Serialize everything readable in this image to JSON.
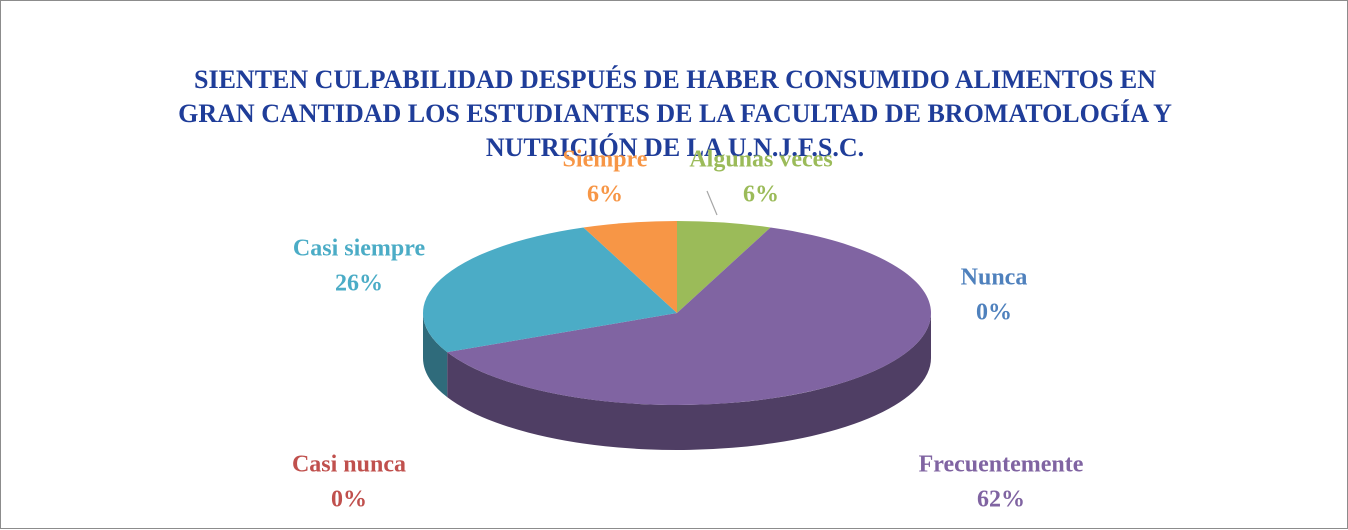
{
  "chart_data": {
    "type": "pie",
    "title": "SIENTEN CULPABILIDAD DESPUÉS DE HABER CONSUMIDO ALIMENTOS EN GRAN CANTIDAD LOS ESTUDIANTES DE LA FACULTAD DE BROMATOLOGÍA Y NUTRICIÓN DE LA U.N.J.F.S.C.",
    "categories": [
      "Algunas veces",
      "Nunca",
      "Frecuentemente",
      "Casi nunca",
      "Casi siempre",
      "Siempre"
    ],
    "values": [
      6,
      0,
      62,
      0,
      26,
      6
    ],
    "value_labels": [
      "6%",
      "0%",
      "62%",
      "0%",
      "26%",
      "6%"
    ],
    "colors": [
      "#9bbb59",
      "#4f81bd",
      "#8064a2",
      "#c0504d",
      "#4bacc6",
      "#f79646"
    ]
  }
}
